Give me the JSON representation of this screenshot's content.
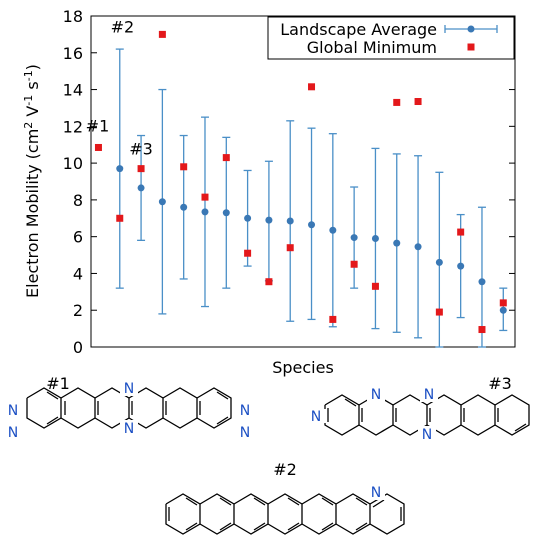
{
  "chart_data": {
    "type": "scatter",
    "xlabel": "Species",
    "ylabel": "Electron Mobility (cm² V⁻¹ s⁻¹)",
    "ylabel_parts": {
      "main": "Electron Mobility  (cm",
      "sup1": "2",
      "mid1": " V",
      "sup2": "-1",
      "mid2": " s",
      "sup3": "-1",
      "end": ")"
    },
    "ylim": [
      0,
      18
    ],
    "yticks": [
      0,
      2,
      4,
      6,
      8,
      10,
      12,
      14,
      16,
      18
    ],
    "grid": false,
    "legend_position": "top-right",
    "x": [
      1,
      2,
      3,
      4,
      5,
      6,
      7,
      8,
      9,
      10,
      11,
      12,
      13,
      14,
      15,
      16,
      17,
      18,
      19,
      20
    ],
    "series": [
      {
        "name": "Landscape Average",
        "marker": "circle-with-errorbar",
        "color": "#3a78b5",
        "points": [
          {
            "x": 2,
            "y": 9.7,
            "low": 3.2,
            "high": 16.2
          },
          {
            "x": 3,
            "y": 8.65,
            "low": 5.8,
            "high": 11.5
          },
          {
            "x": 4,
            "y": 7.9,
            "low": 1.8,
            "high": 14.0
          },
          {
            "x": 5,
            "y": 7.6,
            "low": 3.7,
            "high": 11.5
          },
          {
            "x": 6,
            "y": 7.35,
            "low": 2.2,
            "high": 12.5
          },
          {
            "x": 7,
            "y": 7.3,
            "low": 3.2,
            "high": 11.4
          },
          {
            "x": 8,
            "y": 7.0,
            "low": 4.4,
            "high": 9.6
          },
          {
            "x": 9,
            "y": 6.9,
            "low": 3.6,
            "high": 10.1
          },
          {
            "x": 10,
            "y": 6.85,
            "low": 1.4,
            "high": 12.3
          },
          {
            "x": 11,
            "y": 6.65,
            "low": 1.5,
            "high": 11.9
          },
          {
            "x": 12,
            "y": 6.35,
            "low": 1.1,
            "high": 11.6
          },
          {
            "x": 13,
            "y": 5.95,
            "low": 3.2,
            "high": 8.7
          },
          {
            "x": 14,
            "y": 5.9,
            "low": 1.0,
            "high": 10.8
          },
          {
            "x": 15,
            "y": 5.65,
            "low": 0.8,
            "high": 10.5
          },
          {
            "x": 16,
            "y": 5.45,
            "low": 0.5,
            "high": 10.4
          },
          {
            "x": 17,
            "y": 4.6,
            "low": 0.0,
            "high": 9.5
          },
          {
            "x": 18,
            "y": 4.4,
            "low": 1.6,
            "high": 7.2
          },
          {
            "x": 19,
            "y": 3.55,
            "low": 0.0,
            "high": 7.6
          },
          {
            "x": 20,
            "y": 2.0,
            "low": 0.9,
            "high": 3.2
          }
        ]
      },
      {
        "name": "Global Minimum",
        "marker": "square",
        "color": "#e3181b",
        "points": [
          {
            "x": 1,
            "y": 10.85
          },
          {
            "x": 2,
            "y": 7.0
          },
          {
            "x": 3,
            "y": 9.7
          },
          {
            "x": 4,
            "y": 17.0
          },
          {
            "x": 5,
            "y": 9.8
          },
          {
            "x": 6,
            "y": 8.15
          },
          {
            "x": 7,
            "y": 10.3
          },
          {
            "x": 8,
            "y": 5.1
          },
          {
            "x": 9,
            "y": 3.55
          },
          {
            "x": 10,
            "y": 5.4
          },
          {
            "x": 11,
            "y": 14.15
          },
          {
            "x": 12,
            "y": 1.5
          },
          {
            "x": 13,
            "y": 4.5
          },
          {
            "x": 14,
            "y": 3.3
          },
          {
            "x": 15,
            "y": 13.3
          },
          {
            "x": 16,
            "y": 13.35
          },
          {
            "x": 17,
            "y": 1.9
          },
          {
            "x": 18,
            "y": 6.25
          },
          {
            "x": 19,
            "y": 0.95
          },
          {
            "x": 20,
            "y": 2.4
          }
        ]
      }
    ],
    "annotations": [
      {
        "text": "#1",
        "x": 1,
        "y": 10.85
      },
      {
        "text": "#2",
        "x": 4,
        "y": 17.0
      },
      {
        "text": "#3",
        "x": 3,
        "y": 9.7
      }
    ]
  },
  "molecules": {
    "m1": {
      "label": "#1",
      "atoms": [
        "N",
        "N",
        "N",
        "N",
        "N",
        "N"
      ]
    },
    "m2": {
      "label": "#2",
      "atoms": [
        "N"
      ]
    },
    "m3": {
      "label": "#3",
      "atoms": [
        "N",
        "N",
        "N",
        "N"
      ]
    }
  }
}
